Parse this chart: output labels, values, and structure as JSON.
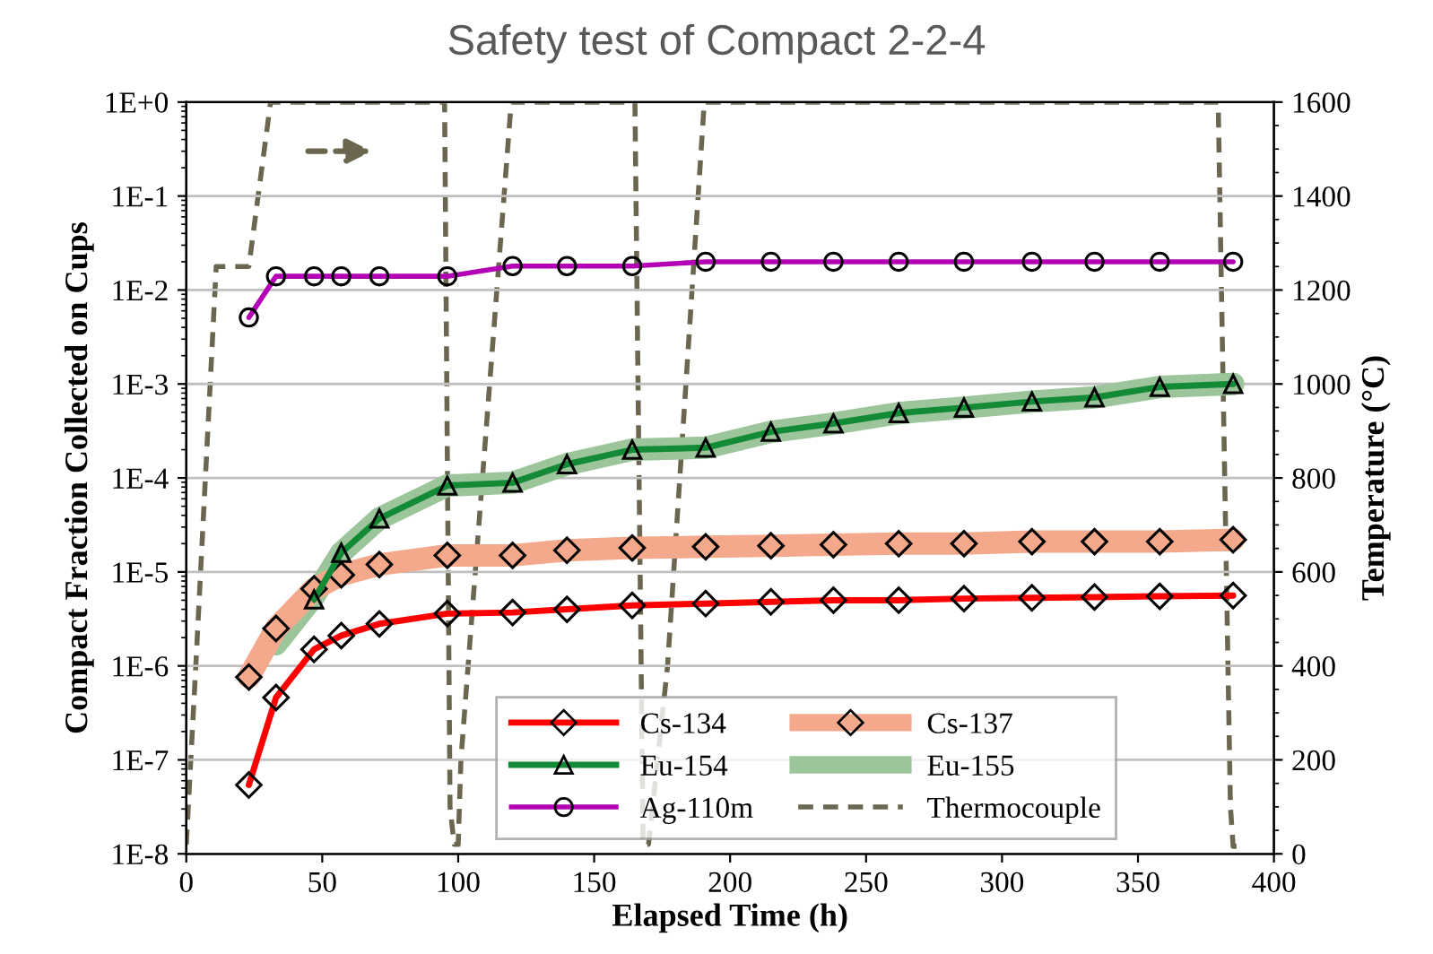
{
  "chart_data": {
    "type": "line",
    "title": "Safety test of Compact 2-2-4",
    "xlabel": "Elapsed Time (h)",
    "ylabel": "Compact Fraction Collected on Cups",
    "y2label": "Temperature (°C)",
    "log": "y",
    "grid": "y",
    "legend": "bottom",
    "xlim": [
      0,
      400
    ],
    "xticks": [
      0,
      50,
      100,
      150,
      200,
      250,
      300,
      350,
      400
    ],
    "ylim": [
      1e-08,
      1
    ],
    "yticks": [
      {
        "value": 1e-08,
        "label": "1E-8"
      },
      {
        "value": 1e-07,
        "label": "1E-7"
      },
      {
        "value": 1e-06,
        "label": "1E-6"
      },
      {
        "value": 1e-05,
        "label": "1E-5"
      },
      {
        "value": 0.0001,
        "label": "1E-4"
      },
      {
        "value": 0.001,
        "label": "1E-3"
      },
      {
        "value": 0.01,
        "label": "1E-2"
      },
      {
        "value": 0.1,
        "label": "1E-1"
      },
      {
        "value": 1,
        "label": "1E+0"
      }
    ],
    "y2lim": [
      0,
      1600
    ],
    "y2ticks": [
      0,
      200,
      400,
      600,
      800,
      1000,
      1200,
      1400,
      1600
    ],
    "series": [
      {
        "name": "Cs-134",
        "color": "#ff0000",
        "marker": "diamond",
        "line_style": "solid",
        "x": [
          23,
          33,
          47,
          57,
          71,
          96,
          120,
          140,
          164,
          191,
          215,
          238,
          262,
          286,
          311,
          334,
          358,
          385
        ],
        "values": [
          5.4e-08,
          4.6e-07,
          1.5e-06,
          2.1e-06,
          2.8e-06,
          3.6e-06,
          3.7e-06,
          4e-06,
          4.4e-06,
          4.6e-06,
          4.8e-06,
          5e-06,
          5e-06,
          5.2e-06,
          5.3e-06,
          5.4e-06,
          5.5e-06,
          5.6e-06
        ]
      },
      {
        "name": "Cs-137",
        "color": "#f4a98c",
        "marker": "diamond",
        "line_style": "solid",
        "x": [
          23,
          33,
          47,
          57,
          71,
          96,
          120,
          140,
          164,
          191,
          215,
          238,
          262,
          286,
          311,
          334,
          358,
          385
        ],
        "values": [
          7.6e-07,
          2.5e-06,
          6.6e-06,
          9.3e-06,
          1.2e-05,
          1.5e-05,
          1.5e-05,
          1.7e-05,
          1.8e-05,
          1.85e-05,
          1.9e-05,
          1.95e-05,
          2e-05,
          2e-05,
          2.1e-05,
          2.1e-05,
          2.1e-05,
          2.2e-05
        ]
      },
      {
        "name": "Eu-154",
        "color": "#138a36",
        "marker": "triangle",
        "line_style": "solid",
        "x": [
          47,
          57,
          71,
          96,
          120,
          140,
          164,
          191,
          215,
          238,
          262,
          286,
          311,
          334,
          358,
          385
        ],
        "values": [
          5.1e-06,
          1.6e-05,
          3.7e-05,
          8.3e-05,
          8.9e-05,
          0.00014,
          0.0002,
          0.00021,
          0.00031,
          0.00038,
          0.00049,
          0.00056,
          0.00065,
          0.00072,
          0.00093,
          0.001
        ]
      },
      {
        "name": "Eu-155",
        "color": "#9cc59c",
        "marker": "none",
        "line_style": "solid",
        "x": [
          33,
          47,
          57,
          71,
          96,
          120,
          140,
          164,
          191,
          215,
          238,
          262,
          286,
          311,
          334,
          358,
          385
        ],
        "values": [
          1.7e-06,
          5.5e-06,
          1.6e-05,
          3.7e-05,
          8.3e-05,
          8.9e-05,
          0.00014,
          0.0002,
          0.00021,
          0.00031,
          0.00038,
          0.00049,
          0.00056,
          0.00065,
          0.00072,
          0.00093,
          0.001
        ]
      },
      {
        "name": "Ag-110m",
        "color": "#b400b4",
        "marker": "circle",
        "line_style": "solid",
        "x": [
          23,
          33,
          47,
          57,
          71,
          96,
          120,
          140,
          164,
          191,
          215,
          238,
          262,
          286,
          311,
          334,
          358,
          385
        ],
        "values": [
          0.0051,
          0.014,
          0.014,
          0.014,
          0.014,
          0.014,
          0.018,
          0.018,
          0.018,
          0.02,
          0.02,
          0.02,
          0.02,
          0.02,
          0.02,
          0.02,
          0.02,
          0.02
        ]
      },
      {
        "name": "Thermocouple",
        "color": "#6b6650",
        "marker": "none",
        "line_style": "dashed",
        "axis": "y2",
        "x": [
          0,
          3.5,
          11,
          23,
          31,
          95,
          97,
          98.5,
          100,
          101,
          119.5,
          165,
          168,
          170,
          177,
          190.5,
          379.5,
          384,
          385,
          388
        ],
        "values": [
          20,
          400,
          1250,
          1250,
          1600,
          1600,
          100,
          20,
          20,
          200,
          1600,
          1600,
          20,
          20,
          400,
          1600,
          1600,
          100,
          16,
          16
        ]
      }
    ]
  }
}
